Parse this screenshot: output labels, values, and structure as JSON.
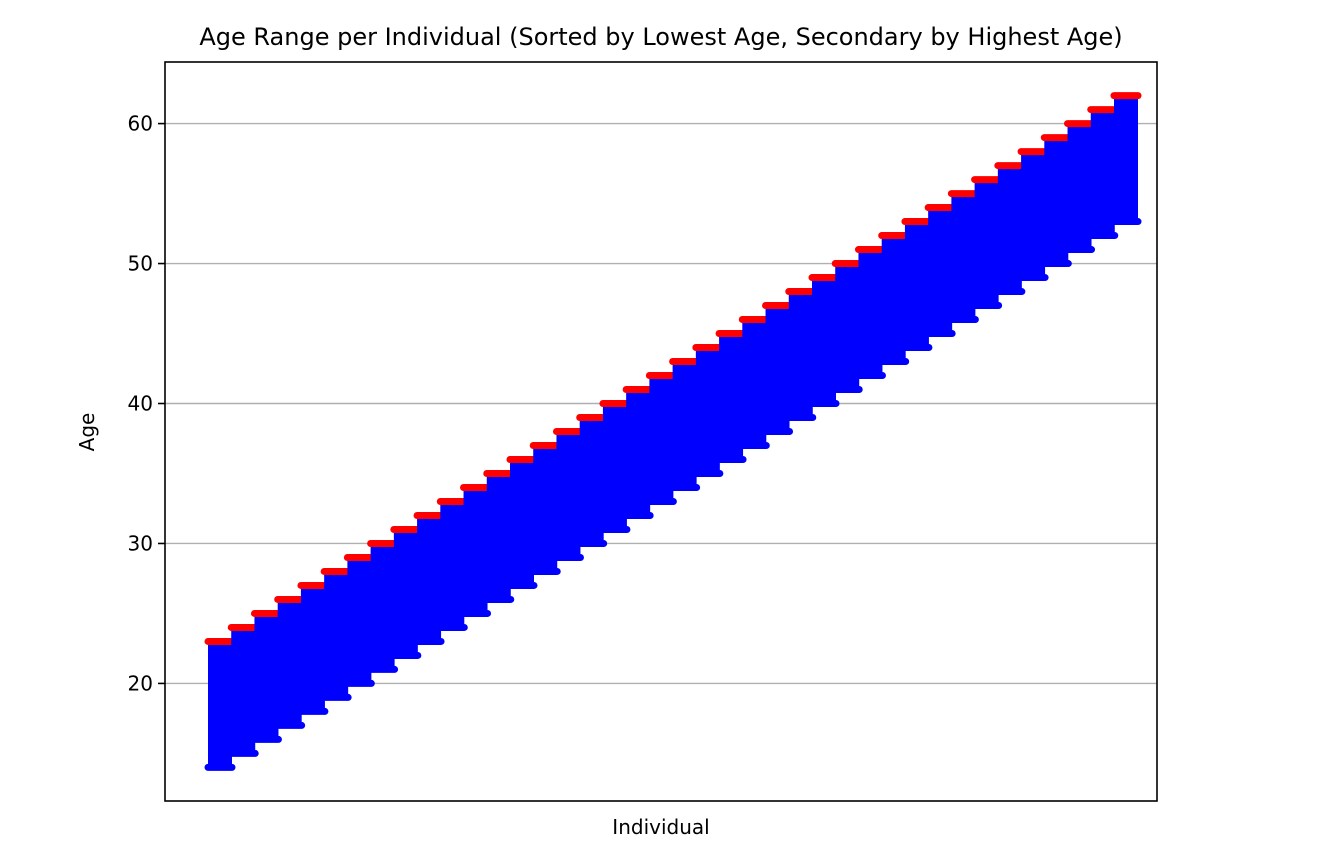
{
  "chart_data": {
    "type": "range",
    "title": "Age Range per Individual (Sorted by Lowest Age, Secondary by Highest Age)",
    "xlabel": "Individual",
    "ylabel": "Age",
    "ylim": [
      11.6,
      64.4
    ],
    "y_ticks": [
      20,
      30,
      40,
      50,
      60
    ],
    "x_ticks": [],
    "grid": "y-axis only",
    "legend": "none",
    "colors": {
      "range": "#0000ff",
      "max_marker": "#ff0000",
      "min_marker": "#0000ff",
      "grid": "#b0b0b0",
      "axes": "#000000"
    },
    "groups": [
      {
        "min_age": 14,
        "max_age": 23
      },
      {
        "min_age": 15,
        "max_age": 24
      },
      {
        "min_age": 16,
        "max_age": 25
      },
      {
        "min_age": 17,
        "max_age": 26
      },
      {
        "min_age": 18,
        "max_age": 27
      },
      {
        "min_age": 19,
        "max_age": 28
      },
      {
        "min_age": 20,
        "max_age": 29
      },
      {
        "min_age": 21,
        "max_age": 30
      },
      {
        "min_age": 22,
        "max_age": 31
      },
      {
        "min_age": 23,
        "max_age": 32
      },
      {
        "min_age": 24,
        "max_age": 33
      },
      {
        "min_age": 25,
        "max_age": 34
      },
      {
        "min_age": 26,
        "max_age": 35
      },
      {
        "min_age": 27,
        "max_age": 36
      },
      {
        "min_age": 28,
        "max_age": 37
      },
      {
        "min_age": 29,
        "max_age": 38
      },
      {
        "min_age": 30,
        "max_age": 39
      },
      {
        "min_age": 31,
        "max_age": 40
      },
      {
        "min_age": 32,
        "max_age": 41
      },
      {
        "min_age": 33,
        "max_age": 42
      },
      {
        "min_age": 34,
        "max_age": 43
      },
      {
        "min_age": 35,
        "max_age": 44
      },
      {
        "min_age": 36,
        "max_age": 45
      },
      {
        "min_age": 37,
        "max_age": 46
      },
      {
        "min_age": 38,
        "max_age": 47
      },
      {
        "min_age": 39,
        "max_age": 48
      },
      {
        "min_age": 40,
        "max_age": 49
      },
      {
        "min_age": 41,
        "max_age": 50
      },
      {
        "min_age": 42,
        "max_age": 51
      },
      {
        "min_age": 43,
        "max_age": 52
      },
      {
        "min_age": 44,
        "max_age": 53
      },
      {
        "min_age": 45,
        "max_age": 54
      },
      {
        "min_age": 46,
        "max_age": 55
      },
      {
        "min_age": 47,
        "max_age": 56
      },
      {
        "min_age": 48,
        "max_age": 57
      },
      {
        "min_age": 49,
        "max_age": 58
      },
      {
        "min_age": 50,
        "max_age": 59
      },
      {
        "min_age": 51,
        "max_age": 60
      },
      {
        "min_age": 52,
        "max_age": 61
      },
      {
        "min_age": 53,
        "max_age": 62
      }
    ]
  }
}
